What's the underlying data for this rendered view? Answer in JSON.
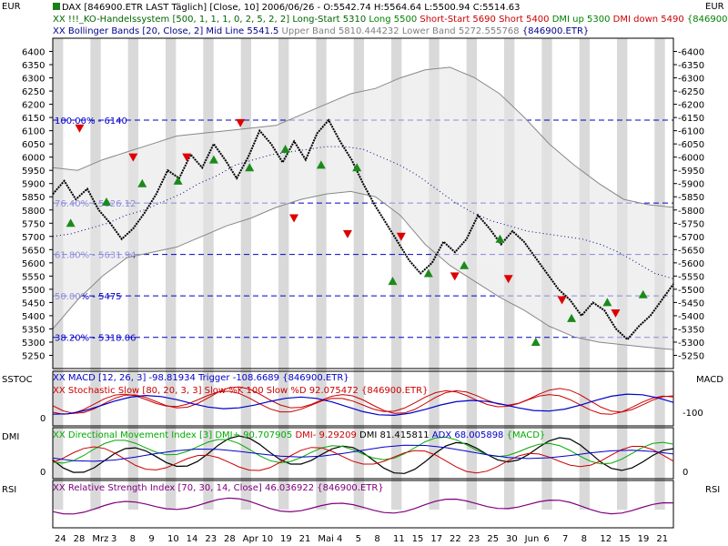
{
  "currency_label": "EUR",
  "headers": {
    "line1": "DAX [846900.ETR LAST Täglich] [Close, 10] 2006/06/26 - O:5542.74 H:5564.64 L:5500.94 C:5514.63",
    "line2_parts": [
      {
        "text": "XX !!!_KO-Handelssystem [500, 1, 1, 1, 0, 2, 5, 2, 2] ",
        "color": "#006400"
      },
      {
        "text": "Long-Start 5310 ",
        "color": "#006400"
      },
      {
        "text": "Long 5500 ",
        "color": "#008000"
      },
      {
        "text": "Short-Start 5690 ",
        "color": "#cc0000"
      },
      {
        "text": "Short 5400 ",
        "color": "#cc0000"
      },
      {
        "text": "DMI up 5300 ",
        "color": "#008000"
      },
      {
        "text": "DMI down 5490 ",
        "color": "#cc0000"
      },
      {
        "text": "{846900.ETR}",
        "color": "#008000"
      }
    ],
    "line3_parts": [
      {
        "text": "XX Bollinger Bands [20, Close, 2] ",
        "color": "#00008b"
      },
      {
        "text": "Mid Line 5541.5 ",
        "color": "#00008b"
      },
      {
        "text": "Upper Band 5810.444232 ",
        "color": "#808080"
      },
      {
        "text": "Lower Band 5272.555768 ",
        "color": "#808080"
      },
      {
        "text": "{846900.ETR}",
        "color": "#00008b"
      }
    ]
  },
  "price_axis_ticks": [
    5250,
    5300,
    5350,
    5400,
    5450,
    5500,
    5550,
    5600,
    5650,
    5700,
    5750,
    5800,
    5850,
    5900,
    5950,
    6000,
    6050,
    6100,
    6150,
    6200,
    6250,
    6300,
    6350,
    6400
  ],
  "fib_levels": [
    {
      "label": "100.00% - 6140",
      "value": 6140
    },
    {
      "label": "76.40% - 5826.12",
      "value": 5826.12
    },
    {
      "label": "61.80% - 5631.94",
      "value": 5631.94
    },
    {
      "label": "50.00% - 5475",
      "value": 5475
    },
    {
      "label": "38.20% - 5318.06",
      "value": 5318.06
    }
  ],
  "date_labels": [
    "24",
    "28",
    "Mrz",
    "3",
    "8",
    "9",
    "10",
    "14",
    "23",
    "28",
    "Apr",
    "10",
    "19",
    "21",
    "Mai",
    "4",
    "5",
    "8",
    "11",
    "15",
    "17",
    "22",
    "23",
    "25",
    "30",
    "Jun",
    "6",
    "7",
    "8",
    "12",
    "15",
    "19",
    "21"
  ],
  "panels": {
    "sstoc": {
      "left_label": "SSTOC",
      "right_label": "MACD",
      "left_tick": "0",
      "right_tick": "-100",
      "legend1": "XX MACD [12, 26, 3] -98.81934 Trigger -108.6689 {846900.ETR}",
      "legend2": "XX Stochastic Slow [80, 20, 3, 3] Slow %K 100 Slow %D 92.075472 {846900.ETR}"
    },
    "dmi": {
      "left_label": "DMI",
      "left_tick": "0",
      "right_tick": "0",
      "legend_parts": [
        {
          "text": "XX Directional Movement Index [3] DMI+ 90.707905 ",
          "color": "#00aa00"
        },
        {
          "text": "DMI- 9.29209 ",
          "color": "#cc0000"
        },
        {
          "text": "DMI 81.415811 ",
          "color": "#000000"
        },
        {
          "text": "ADX 68.005898 ",
          "color": "#0000cc"
        },
        {
          "text": "{MACD}",
          "color": "#00aa00"
        }
      ]
    },
    "rsi": {
      "left_label": "RSI",
      "right_label": "RSI",
      "legend": "XX Relative Strength Index [70, 30, 14, Close] 46.036922 {846900.ETR}"
    }
  },
  "chart_data": {
    "type": "line",
    "title": "DAX [846900.ETR LAST Täglich] [Close, 10]",
    "ylabel": "EUR",
    "ylim": [
      5200,
      6450
    ],
    "date_axis": [
      "24",
      "28",
      "Mrz",
      "3",
      "8",
      "9",
      "10",
      "14",
      "23",
      "28",
      "Apr",
      "10",
      "19",
      "21",
      "Mai",
      "4",
      "5",
      "8",
      "11",
      "15",
      "17",
      "22",
      "23",
      "25",
      "30",
      "Jun",
      "6",
      "7",
      "8",
      "12",
      "15",
      "19",
      "21"
    ],
    "series": [
      {
        "name": "Close",
        "values": [
          5860,
          5910,
          5840,
          5880,
          5800,
          5750,
          5690,
          5730,
          5790,
          5860,
          5950,
          5920,
          6010,
          5960,
          6050,
          5990,
          5920,
          6000,
          6100,
          6050,
          5980,
          6060,
          5990,
          6090,
          6140,
          6060,
          5990,
          5900,
          5820,
          5750,
          5680,
          5610,
          5560,
          5600,
          5680,
          5640,
          5690,
          5780,
          5730,
          5670,
          5720,
          5680,
          5620,
          5560,
          5500,
          5460,
          5400,
          5450,
          5420,
          5350,
          5310,
          5360,
          5400,
          5460,
          5520
        ]
      },
      {
        "name": "Mid Line",
        "values": [
          5700,
          5710,
          5730,
          5750,
          5780,
          5800,
          5830,
          5860,
          5900,
          5930,
          5970,
          5990,
          6010,
          6020,
          6030,
          6040,
          6040,
          6030,
          6000,
          5970,
          5930,
          5880,
          5830,
          5790,
          5760,
          5740,
          5720,
          5710,
          5700,
          5690,
          5670,
          5640,
          5600,
          5560,
          5540
        ]
      },
      {
        "name": "Upper Band",
        "values": [
          5960,
          5950,
          5990,
          6020,
          6050,
          6080,
          6090,
          6100,
          6110,
          6120,
          6160,
          6200,
          6240,
          6260,
          6300,
          6330,
          6340,
          6300,
          6240,
          6150,
          6050,
          5970,
          5900,
          5840,
          5820,
          5810
        ]
      },
      {
        "name": "Lower Band",
        "values": [
          5350,
          5460,
          5550,
          5620,
          5640,
          5660,
          5700,
          5740,
          5770,
          5810,
          5840,
          5860,
          5870,
          5850,
          5780,
          5670,
          5590,
          5530,
          5470,
          5420,
          5360,
          5320,
          5300,
          5290,
          5280,
          5272
        ]
      }
    ],
    "signals": {
      "long": [
        5750,
        5830,
        5900,
        5910,
        5990,
        5960,
        6030,
        5970,
        5960,
        5530,
        5560,
        5590,
        5690,
        5300,
        5390,
        5450,
        5480
      ],
      "short": [
        6110,
        6000,
        6000,
        6130,
        5770,
        5710,
        5700,
        5550,
        5540,
        5460,
        5410
      ]
    },
    "fibonacci": [
      6140,
      5826.12,
      5631.94,
      5475,
      5318.06
    ]
  }
}
